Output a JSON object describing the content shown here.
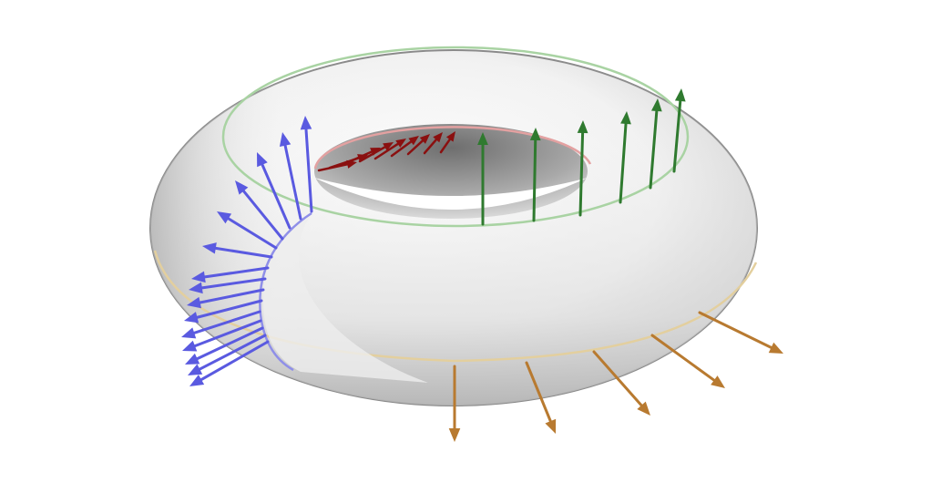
{
  "figure": {
    "subject": "torus",
    "surface_color": "#ececec",
    "curves": [
      {
        "id": "top-circle",
        "color": "#a9d3a3"
      },
      {
        "id": "inner-circle",
        "color": "#e3a1a1"
      },
      {
        "id": "outer-equator",
        "color": "#e3cf9e"
      },
      {
        "id": "meridian",
        "color": "#8f8fe8"
      }
    ],
    "vector_fields": [
      {
        "id": "blue-normals",
        "color": "#5a5ae0",
        "count": 15
      },
      {
        "id": "red-normals",
        "color": "#8a1010",
        "count": 9
      },
      {
        "id": "green-normals",
        "color": "#2f7a2f",
        "count": 6
      },
      {
        "id": "orange-normals",
        "color": "#b87a30",
        "count": 5
      }
    ]
  }
}
